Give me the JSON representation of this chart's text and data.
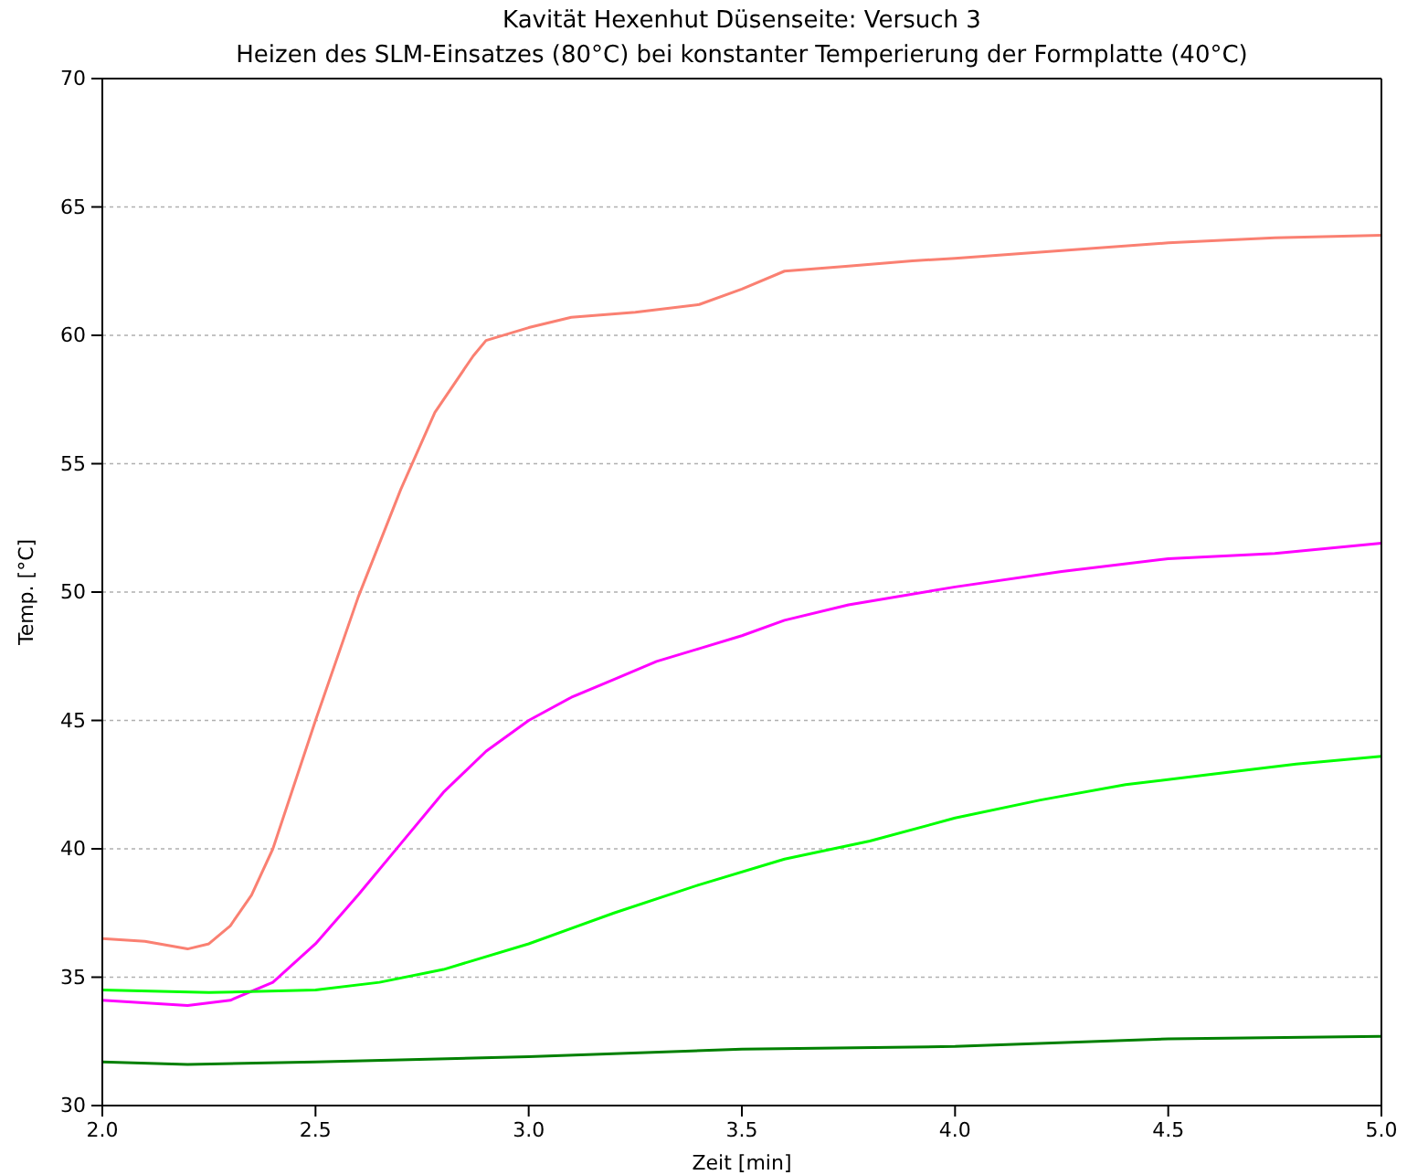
{
  "chart_data": {
    "type": "line",
    "title": "Kavität Hexenhut Düsenseite: Versuch 3",
    "subtitle": "Heizen des SLM-Einsatzes (80°C) bei konstanter Temperierung der Formplatte (40°C)",
    "xlabel": "Zeit [min]",
    "ylabel": "Temp. [°C]",
    "xlim": [
      2.0,
      5.0
    ],
    "xticks": [
      {
        "value": 2,
        "label": "2.0"
      },
      {
        "value": 2.5,
        "label": "2.5"
      },
      {
        "value": 3,
        "label": "3.0"
      },
      {
        "value": 3.5,
        "label": "3.5"
      },
      {
        "value": 4,
        "label": "4.0"
      },
      {
        "value": 4.5,
        "label": "4.5"
      },
      {
        "value": 5,
        "label": "5.0"
      }
    ],
    "ylim": [
      30,
      70
    ],
    "yticks": [
      30,
      35,
      40,
      45,
      50,
      55,
      60,
      65,
      70
    ],
    "grid": "y",
    "series": [
      {
        "color": "#fa8072",
        "x": [
          2.0,
          2.1,
          2.2,
          2.25,
          2.3,
          2.35,
          2.4,
          2.5,
          2.6,
          2.7,
          2.78,
          2.87,
          2.9,
          3.0,
          3.1,
          3.25,
          3.4,
          3.5,
          3.6,
          3.75,
          3.9,
          4.0,
          4.25,
          4.5,
          4.75,
          5.0
        ],
        "values": [
          36.5,
          36.4,
          36.1,
          36.3,
          37.0,
          38.2,
          40.0,
          45.0,
          49.8,
          54.0,
          57.0,
          59.2,
          59.8,
          60.3,
          60.7,
          60.9,
          61.2,
          61.8,
          62.5,
          62.7,
          62.9,
          63.0,
          63.3,
          63.6,
          63.8,
          63.9
        ]
      },
      {
        "color": "#ff00ff",
        "x": [
          2.0,
          2.2,
          2.3,
          2.4,
          2.5,
          2.6,
          2.7,
          2.8,
          2.9,
          3.0,
          3.1,
          3.2,
          3.3,
          3.4,
          3.5,
          3.6,
          3.75,
          4.0,
          4.25,
          4.5,
          4.75,
          5.0
        ],
        "values": [
          34.1,
          33.9,
          34.1,
          34.8,
          36.3,
          38.2,
          40.2,
          42.2,
          43.8,
          45.0,
          45.9,
          46.6,
          47.3,
          47.8,
          48.3,
          48.9,
          49.5,
          50.2,
          50.8,
          51.3,
          51.5,
          51.9
        ]
      },
      {
        "color": "#00ff00",
        "x": [
          2.0,
          2.25,
          2.5,
          2.65,
          2.8,
          3.0,
          3.2,
          3.4,
          3.6,
          3.8,
          4.0,
          4.2,
          4.4,
          4.6,
          4.8,
          5.0
        ],
        "values": [
          34.5,
          34.4,
          34.5,
          34.8,
          35.3,
          36.3,
          37.5,
          38.6,
          39.6,
          40.3,
          41.2,
          41.9,
          42.5,
          42.9,
          43.3,
          43.6
        ]
      },
      {
        "color": "#008000",
        "x": [
          2.0,
          2.2,
          2.5,
          3.0,
          3.5,
          4.0,
          4.5,
          5.0
        ],
        "values": [
          31.7,
          31.6,
          31.7,
          31.9,
          32.2,
          32.3,
          32.6,
          32.7
        ]
      }
    ]
  }
}
